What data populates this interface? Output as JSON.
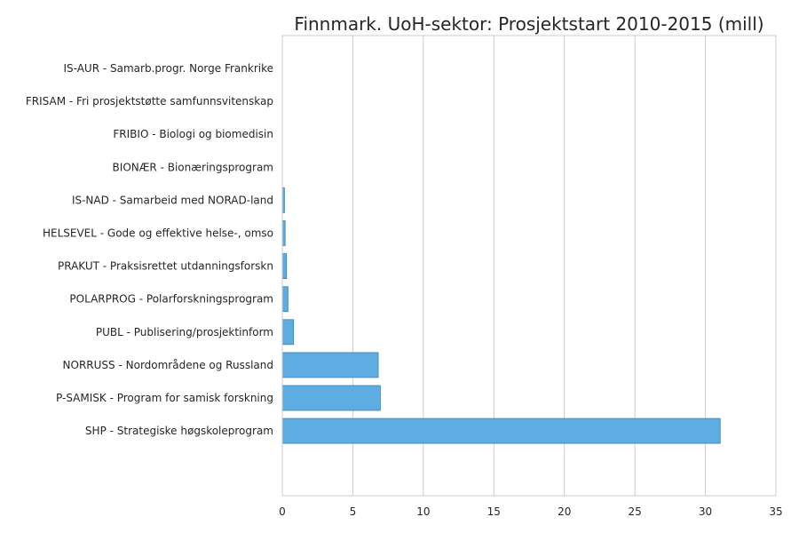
{
  "chart_data": {
    "type": "bar",
    "orientation": "horizontal",
    "title": "Finnmark. UoH-sektor: Prosjektstart 2010-2015 (mill)",
    "xlabel": "",
    "ylabel": "",
    "xlim": [
      0,
      35
    ],
    "xticks": [
      0,
      5,
      10,
      15,
      20,
      25,
      30,
      35
    ],
    "grid": "vertical",
    "categories": [
      "IS-AUR - Samarb.progr. Norge Frankrike",
      "FRISAM - Fri prosjektstøtte samfunnsvitenskap",
      "FRIBIO - Biologi og biomedisin",
      "BIONÆR - Bionæringsprogram",
      "IS-NAD - Samarbeid med NORAD-land",
      "HELSEVEL - Gode og effektive helse-, omso",
      "PRAKUT - Praksisrettet utdanningsforskn",
      "POLARPROG - Polarforskningsprogram",
      "PUBL - Publisering/prosjektinform",
      "NORRUSS - Nordområdene og Russland",
      "P-SAMISK - Program for samisk forskning",
      "SHP - Strategiske høgskoleprogram"
    ],
    "values": [
      0.0,
      0.0,
      0.0,
      0.0,
      0.15,
      0.2,
      0.3,
      0.4,
      0.8,
      6.8,
      6.95,
      31.05
    ],
    "colors": {
      "bar": "#5DADE2",
      "bar_edge": "#3A7FB5",
      "grid": "#cccccc",
      "text": "#262626"
    }
  }
}
